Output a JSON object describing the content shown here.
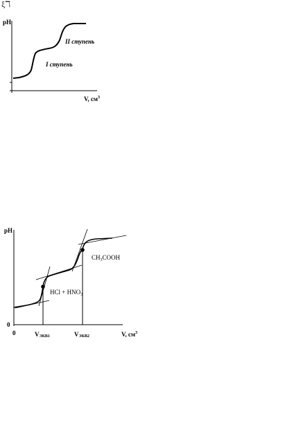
{
  "header": {
    "glyph": "ξℸ"
  },
  "figure1": {
    "y_label": "pH",
    "x_label": "V, см",
    "x_label_sup": "3",
    "stage1_label": "I ступень",
    "stage2_label": "II ступень"
  },
  "figure2": {
    "y_label": "pH",
    "x_label": "V, см",
    "x_label_sup": "3",
    "y_origin": "0",
    "x_origin": "0",
    "eq1_label": "V",
    "eq1_sub": "ЭКВ1",
    "eq2_label": "V",
    "eq2_sub": "ЭКВ2",
    "region1_label": "HCl + HNO",
    "region1_sub": "3",
    "region2_label": "CH",
    "region2_sub": "3",
    "region2_label_end": "COOH"
  }
}
